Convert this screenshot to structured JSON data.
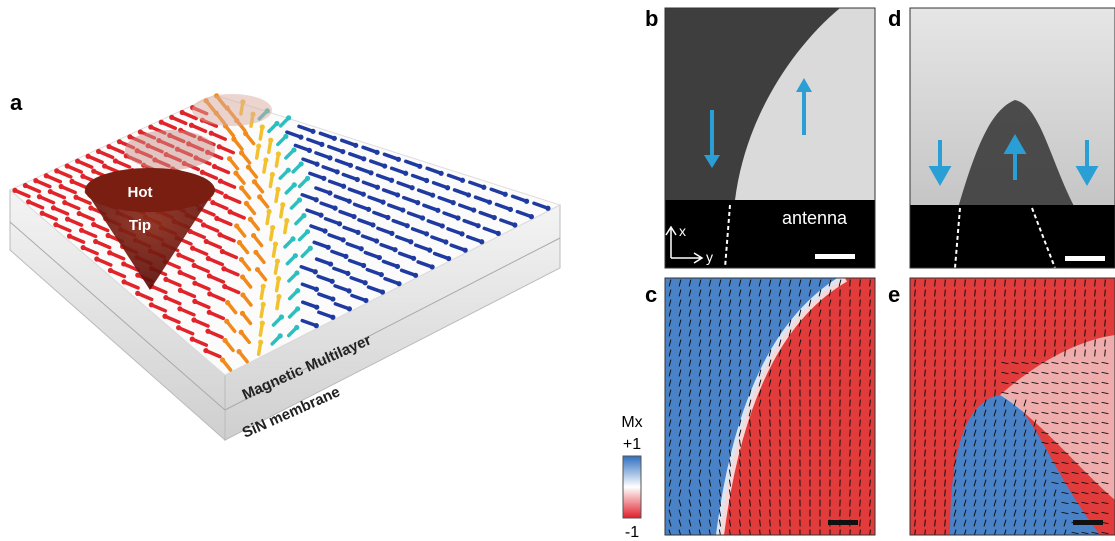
{
  "panels": {
    "a": {
      "label": "a",
      "tip": [
        "Hot",
        "Tip"
      ],
      "layer_top": "Magnetic Multilayer",
      "layer_bottom": "SiN membrane"
    },
    "b": {
      "label": "b",
      "antenna": "antenna",
      "axis_x": "x",
      "axis_y": "y"
    },
    "c": {
      "label": "c"
    },
    "d": {
      "label": "d"
    },
    "e": {
      "label": "e"
    }
  },
  "colorbar": {
    "title": "Mx",
    "top": "+1",
    "bottom": "-1"
  }
}
